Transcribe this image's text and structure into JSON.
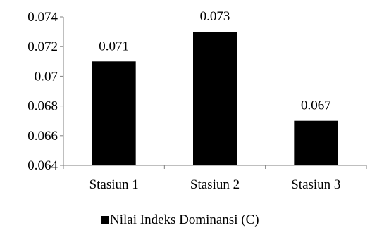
{
  "chart_data": {
    "type": "bar",
    "title": "",
    "xlabel": "",
    "ylabel": "",
    "categories": [
      "Stasiun 1",
      "Stasiun 2",
      "Stasiun 3"
    ],
    "series": [
      {
        "name": "Nilai Indeks Dominansi (C)",
        "values": [
          0.071,
          0.073,
          0.067
        ],
        "value_labels": [
          "0.071",
          "0.073",
          "0.067"
        ],
        "color": "#000000"
      }
    ],
    "ylim": [
      0.064,
      0.074
    ],
    "yticks": [
      0.064,
      0.066,
      0.068,
      0.07,
      0.072,
      0.074
    ],
    "ytick_labels": [
      "0.064",
      "0.066",
      "0.068",
      "0.07",
      "0.072",
      "0.074"
    ],
    "grid": false,
    "legend_position": "bottom",
    "axis_color": "#7f7f7f"
  }
}
